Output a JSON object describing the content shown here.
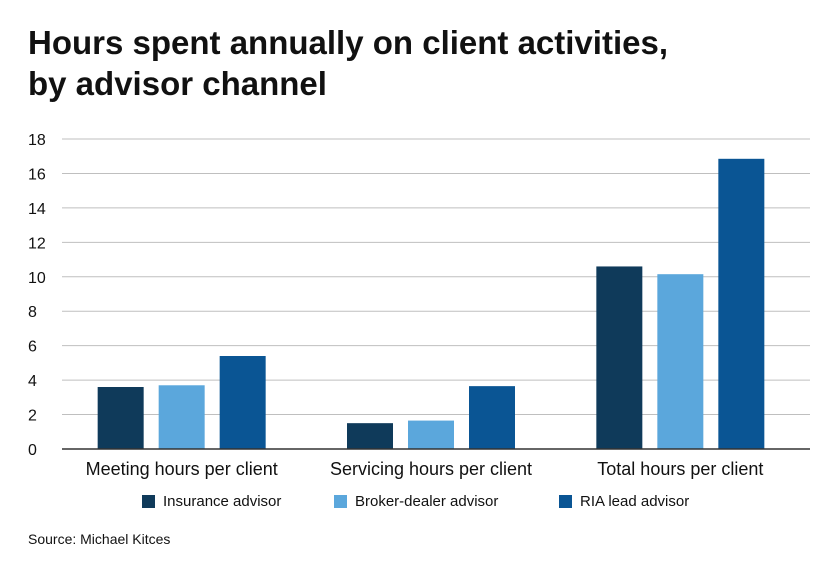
{
  "title_lines": [
    "Hours spent annually on client activities,",
    "by advisor channel"
  ],
  "source": "Source: Michael Kitces",
  "colors": {
    "insurance": "#0f3a5a",
    "broker_dealer": "#5ba7dc",
    "ria": "#0a5594",
    "grid": "#bfbfbf",
    "axis": "#333333"
  },
  "chart_data": {
    "type": "bar",
    "title": "Hours spent annually on client activities, by advisor channel",
    "categories": [
      "Meeting hours per client",
      "Servicing hours per client",
      "Total hours per client"
    ],
    "series": [
      {
        "name": "Insurance advisor",
        "color": "#0f3a5a",
        "values": [
          3.6,
          1.5,
          10.6
        ]
      },
      {
        "name": "Broker-dealer advisor",
        "color": "#5ba7dc",
        "values": [
          3.7,
          1.65,
          10.15
        ]
      },
      {
        "name": "RIA lead advisor",
        "color": "#0a5594",
        "values": [
          5.4,
          3.65,
          16.85
        ]
      }
    ],
    "ylim": [
      0,
      18
    ],
    "yticks": [
      "0",
      "2",
      "4",
      "6",
      "8",
      "10",
      "12",
      "14",
      "16",
      "18"
    ],
    "grid": true,
    "legend_position": "bottom",
    "xlabel": "",
    "ylabel": ""
  }
}
